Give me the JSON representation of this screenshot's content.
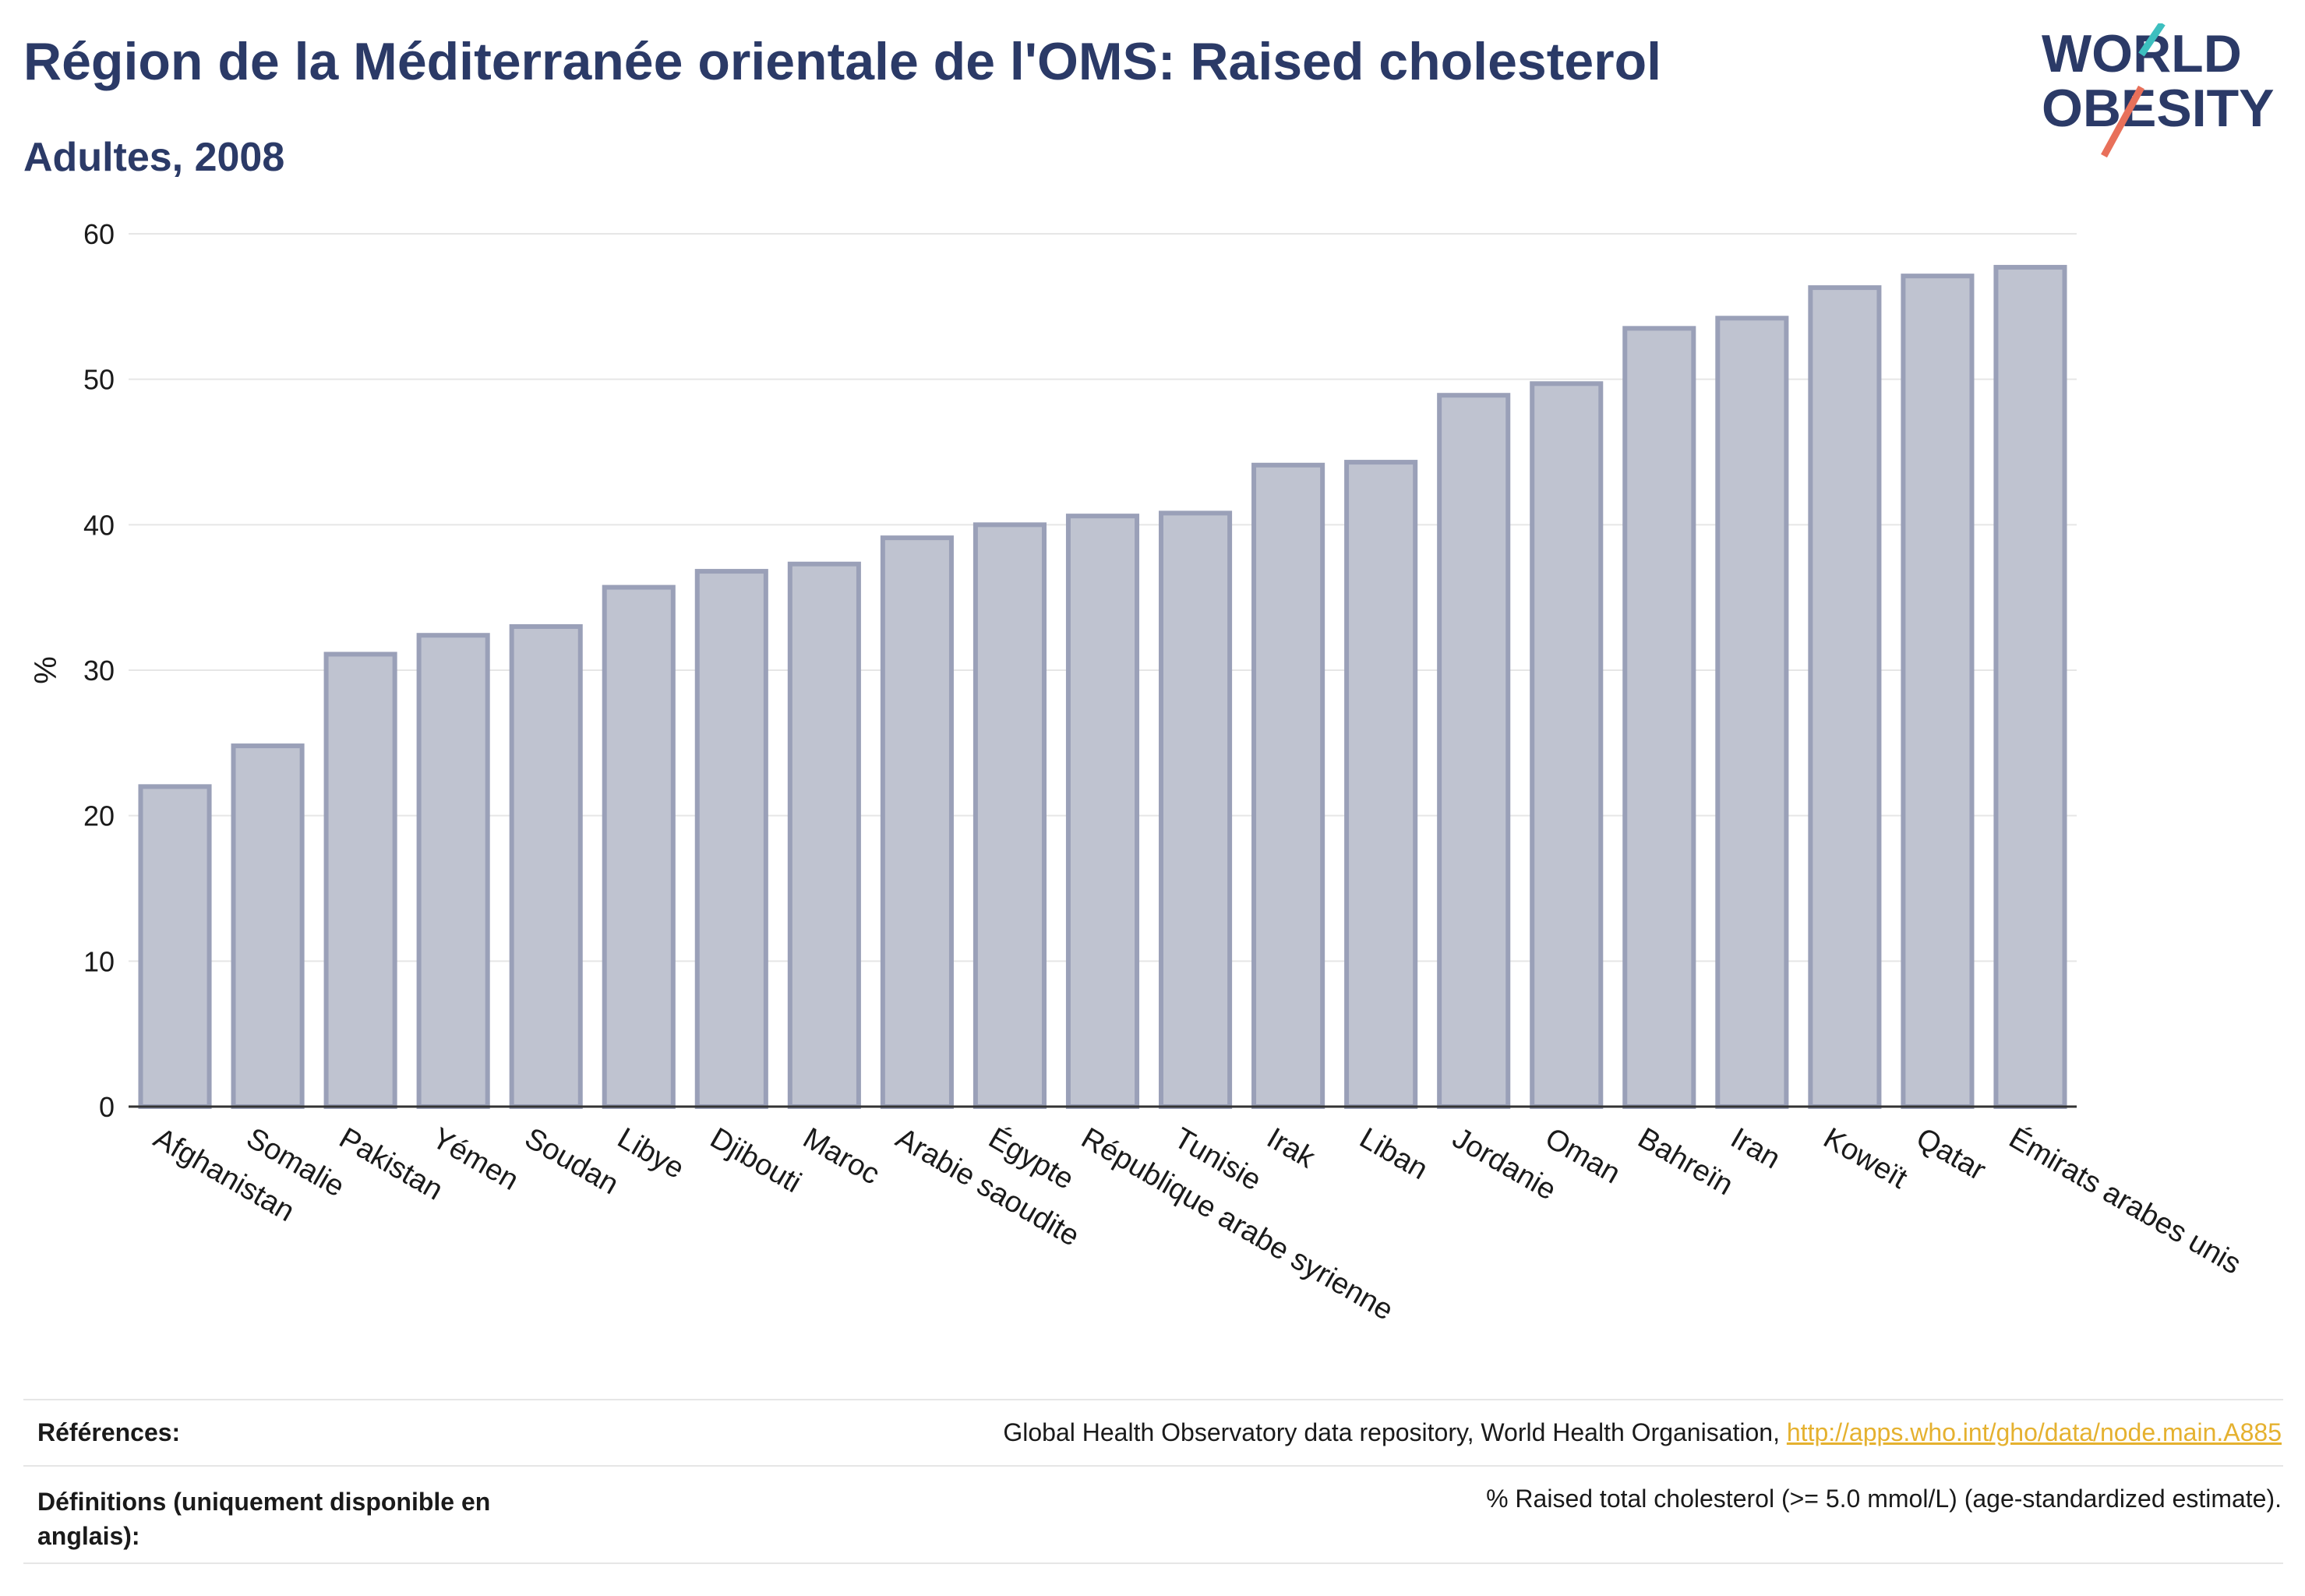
{
  "header": {
    "title": "Région de la Méditerranée orientale de l'OMS: Raised cholesterol",
    "subtitle": "Adultes, 2008"
  },
  "logo": {
    "line1": "WORLD",
    "line2": "OBESITY",
    "name": "world-obesity-logo"
  },
  "colors": {
    "title": "#2b3a67",
    "bar_fill": "#bfc3d0",
    "bar_stroke": "#9aa0b8",
    "grid": "#e6e6e6",
    "link": "#e5b12f",
    "logo_teal": "#3dbfbf",
    "logo_coral": "#e8705a"
  },
  "chart_data": {
    "type": "bar",
    "ylabel": "%",
    "xlabel": "",
    "ylim": [
      0,
      60
    ],
    "yticks": [
      0,
      10,
      20,
      30,
      40,
      50,
      60
    ],
    "grid": true,
    "categories": [
      "Afghanistan",
      "Somalie",
      "Pakistan",
      "Yémen",
      "Soudan",
      "Libye",
      "Djibouti",
      "Maroc",
      "Arabie saoudite",
      "Égypte",
      "République arabe syrienne",
      "Tunisie",
      "Irak",
      "Liban",
      "Jordanie",
      "Oman",
      "Bahreïn",
      "Iran",
      "Koweït",
      "Qatar",
      "Émirats arabes unis"
    ],
    "values": [
      22.0,
      24.8,
      31.1,
      32.4,
      33.0,
      35.7,
      36.8,
      37.3,
      39.1,
      40.0,
      40.6,
      40.8,
      44.1,
      44.3,
      48.9,
      49.7,
      53.5,
      54.2,
      56.3,
      57.1,
      57.7
    ]
  },
  "footer": {
    "ref_label": "Références:",
    "ref_text": "Global Health Observatory data repository, World Health Organisation, ",
    "ref_link": "http://apps.who.int/gho/data/node.main.A885",
    "def_label_line1": "Définitions (uniquement disponible en",
    "def_label_line2": "anglais):",
    "def_text": "% Raised total cholesterol (>= 5.0 mmol/L) (age-standardized estimate)."
  }
}
